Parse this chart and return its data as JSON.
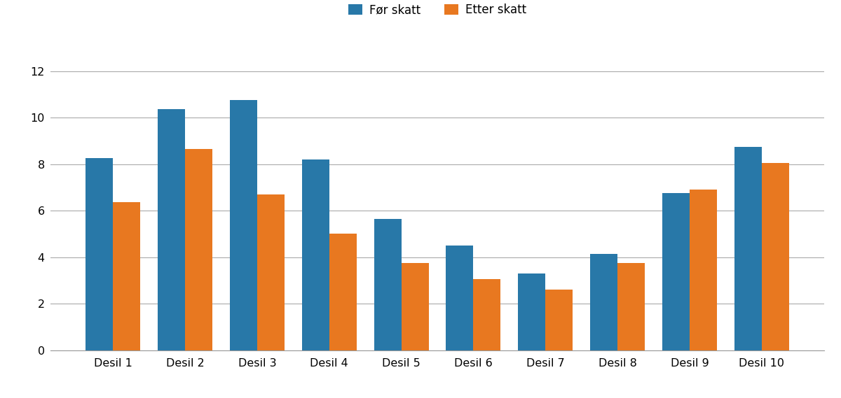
{
  "categories": [
    "Desil 1",
    "Desil 2",
    "Desil 3",
    "Desil 4",
    "Desil 5",
    "Desil 6",
    "Desil 7",
    "Desil 8",
    "Desil 9",
    "Desil 10"
  ],
  "for_skatt": [
    8.25,
    10.35,
    10.75,
    8.2,
    5.65,
    4.5,
    3.3,
    4.15,
    6.75,
    8.75
  ],
  "etter_skatt": [
    6.35,
    8.65,
    6.7,
    5.0,
    3.75,
    3.05,
    2.6,
    3.75,
    6.9,
    8.05
  ],
  "color_for": "#2878a8",
  "color_etter": "#e87820",
  "legend_for": "Før skatt",
  "legend_etter": "Etter skatt",
  "ylim": [
    0,
    13
  ],
  "yticks": [
    0,
    2,
    4,
    6,
    8,
    10,
    12
  ],
  "background_color": "#ffffff",
  "grid_color": "#aaaaaa",
  "bar_width": 0.38
}
